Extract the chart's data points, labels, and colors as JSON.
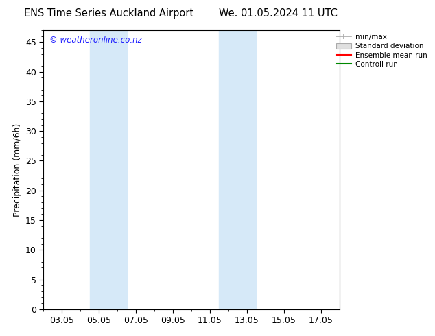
{
  "title": "ENS Time Series Auckland Airport",
  "title2": "We. 01.05.2024 11 UTC",
  "ylabel": "Precipitation (mm/6h)",
  "ylim": [
    0,
    47
  ],
  "yticks": [
    0,
    5,
    10,
    15,
    20,
    25,
    30,
    35,
    40,
    45
  ],
  "xtick_labels": [
    "03.05",
    "05.05",
    "07.05",
    "09.05",
    "11.05",
    "13.05",
    "15.05",
    "17.05"
  ],
  "xtick_positions": [
    2,
    4,
    6,
    8,
    10,
    12,
    14,
    16
  ],
  "xlim": [
    1,
    17
  ],
  "shaded_bands": [
    {
      "xmin": 3.5,
      "xmax": 5.5
    },
    {
      "xmin": 10.5,
      "xmax": 12.5
    }
  ],
  "band_color": "#d6e9f8",
  "copyright_text": "© weatheronline.co.nz",
  "copyright_color": "#1a1aff",
  "legend_labels": [
    "min/max",
    "Standard deviation",
    "Ensemble mean run",
    "Controll run"
  ],
  "legend_colors": [
    "#aaaaaa",
    "#cccccc",
    "#ff0000",
    "#008800"
  ],
  "bg_color": "#ffffff",
  "plot_bg_color": "#ffffff",
  "title_fontsize": 10.5,
  "axis_fontsize": 9
}
